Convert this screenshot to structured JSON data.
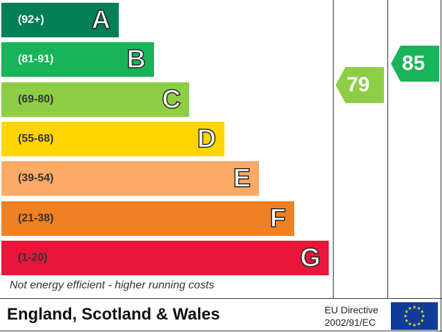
{
  "chart_data": {
    "type": "bar",
    "categories": [
      "A",
      "B",
      "C",
      "D",
      "E",
      "F",
      "G"
    ],
    "bands": [
      {
        "letter": "A",
        "range": "(92+)",
        "color": "#008054",
        "text": "light"
      },
      {
        "letter": "B",
        "range": "(81-91)",
        "color": "#19b459",
        "text": "light"
      },
      {
        "letter": "C",
        "range": "(69-80)",
        "color": "#8dce46",
        "text": "dark"
      },
      {
        "letter": "D",
        "range": "(55-68)",
        "color": "#ffd500",
        "text": "dark"
      },
      {
        "letter": "E",
        "range": "(39-54)",
        "color": "#fcaa65",
        "text": "dark"
      },
      {
        "letter": "F",
        "range": "(21-38)",
        "color": "#ef8023",
        "text": "dark"
      },
      {
        "letter": "G",
        "range": "(1-20)",
        "color": "#e9153b",
        "text": "dark"
      }
    ],
    "current": {
      "value": 79,
      "color": "#8dce46"
    },
    "potential": {
      "value": 85,
      "color": "#19b459"
    },
    "footnote": "Not energy efficient - higher running costs"
  },
  "footer": {
    "region": "England, Scotland & Wales",
    "directive_line1": "EU Directive",
    "directive_line2": "2002/91/EC"
  },
  "icons": {
    "flag": "eu-flag-icon"
  }
}
